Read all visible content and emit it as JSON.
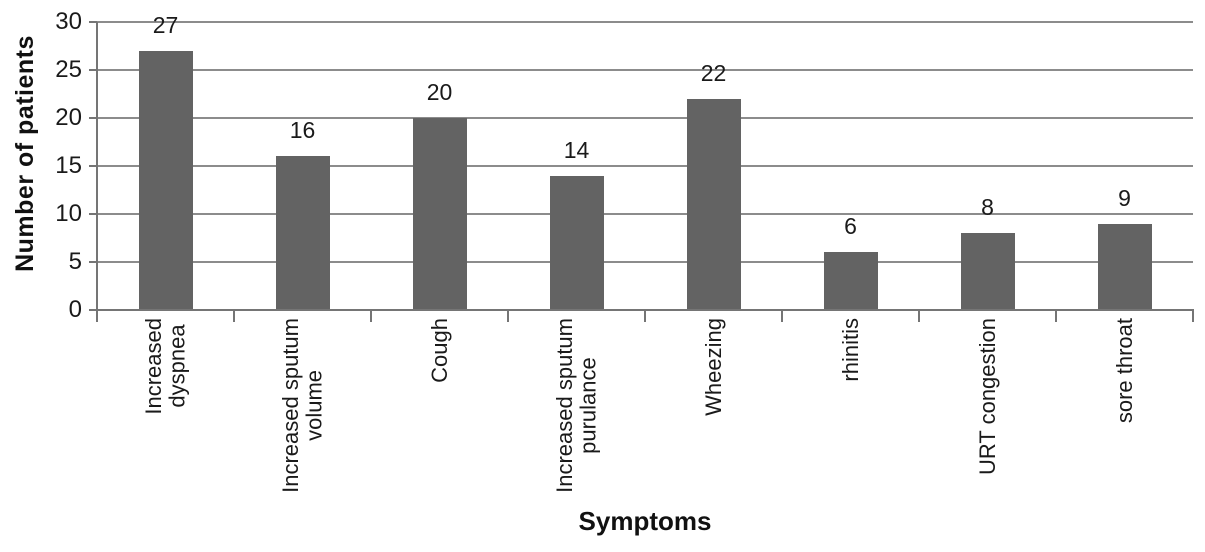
{
  "chart_data": {
    "type": "bar",
    "title": "",
    "xlabel": "Symptoms",
    "ylabel": "Number of patients",
    "categories": [
      "Increased dyspnea",
      "Increased sputum volume",
      "Cough",
      "Increased sputum purulance",
      "Wheezing",
      "rhinitis",
      "URT congestion",
      "sore throat"
    ],
    "category_display_lines": [
      "Increased\ndyspnea",
      "Increased sputum\nvolume",
      "Cough",
      "Increased sputum\npurulance",
      "Wheezing",
      "rhinitis",
      "URT congestion",
      "sore throat"
    ],
    "values": [
      27,
      16,
      20,
      14,
      22,
      6,
      8,
      9
    ],
    "data_labels_shown": [
      "27",
      "16",
      "20",
      "14",
      "22",
      "6",
      "8",
      "9"
    ],
    "ylim": [
      0,
      30
    ],
    "yticks": [
      0,
      5,
      10,
      15,
      20,
      25,
      30
    ],
    "grid": "horizontal",
    "legend_position": "none",
    "bar_color": "#636363",
    "gridline_color": "#8c8c8c",
    "axis_color": "#757575",
    "text_color": "#1a1a1a"
  }
}
